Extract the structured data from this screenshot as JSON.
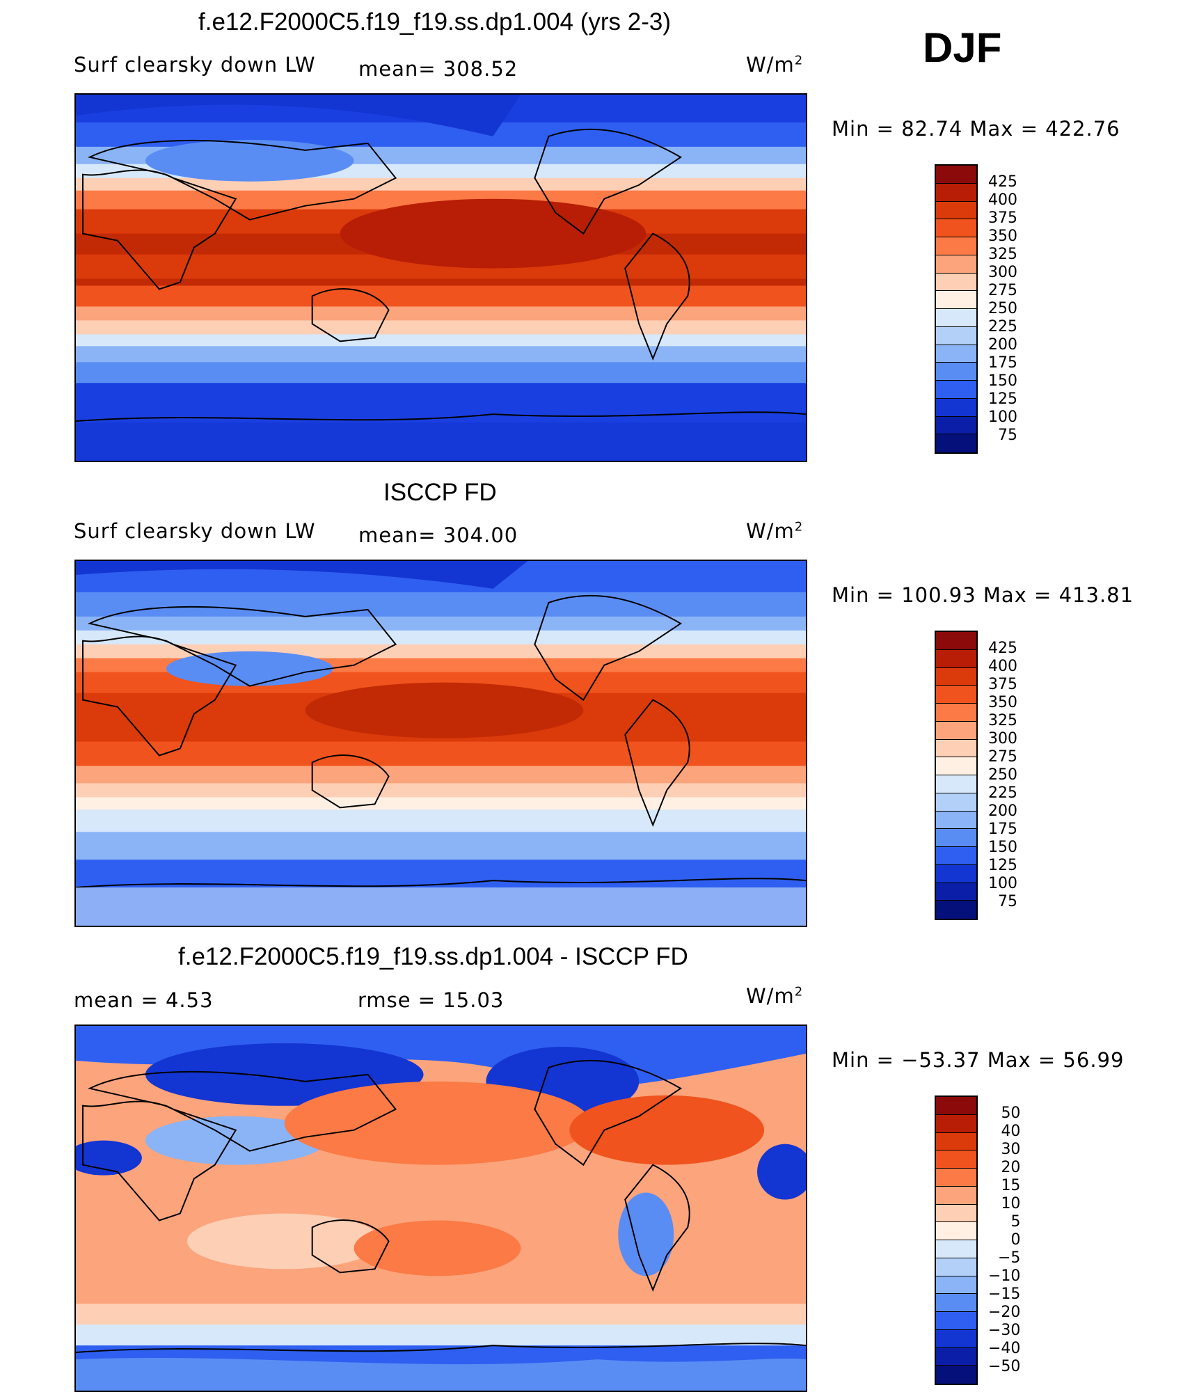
{
  "season": "DJF",
  "units_symbol": "W/m",
  "units_exp": "2",
  "panels": [
    {
      "title": "f.e12.F2000C5.f19_f19.ss.dp1.004 (yrs 2-3)",
      "left_label": "Surf clearsky down LW",
      "stat_label": "mean= 308.52",
      "minmax": "Min =   82.74 Max =  422.76"
    },
    {
      "title": "ISCCP FD",
      "left_label": "Surf clearsky down LW",
      "stat_label": "mean= 304.00",
      "minmax": "Min = 100.93 Max = 413.81"
    },
    {
      "title": "f.e12.F2000C5.f19_f19.ss.dp1.004 - ISCCP FD",
      "left_label": "mean =     4.53",
      "stat_label": "rmse =   15.03",
      "minmax": "Min = −53.37 Max =   56.99"
    }
  ],
  "colorbars": [
    {
      "labels": [
        "425",
        "400",
        "375",
        "350",
        "325",
        "300",
        "275",
        "250",
        "225",
        "200",
        "175",
        "150",
        "125",
        "100",
        "75"
      ],
      "colors": [
        "#8b0a0a",
        "#b81e05",
        "#db3a0a",
        "#f0531d",
        "#fb7a45",
        "#fca47c",
        "#fdcfb5",
        "#fff0e3",
        "#d6e8fa",
        "#b3d1f8",
        "#8ab4f6",
        "#5a8df4",
        "#2f5ff0",
        "#1335d2",
        "#0a1ea8",
        "#05107a"
      ]
    },
    {
      "labels": [
        "425",
        "400",
        "375",
        "350",
        "325",
        "300",
        "275",
        "250",
        "225",
        "200",
        "175",
        "150",
        "125",
        "100",
        "75"
      ],
      "colors": [
        "#8b0a0a",
        "#b81e05",
        "#db3a0a",
        "#f0531d",
        "#fb7a45",
        "#fca47c",
        "#fdcfb5",
        "#fff0e3",
        "#d6e8fa",
        "#b3d1f8",
        "#8ab4f6",
        "#5a8df4",
        "#2f5ff0",
        "#1335d2",
        "#0a1ea8",
        "#05107a"
      ]
    },
    {
      "labels": [
        "50",
        "40",
        "30",
        "20",
        "15",
        "10",
        "5",
        "0",
        "−5",
        "−10",
        "−15",
        "−20",
        "−30",
        "−40",
        "−50"
      ],
      "colors": [
        "#8b0a0a",
        "#b81e05",
        "#db3a0a",
        "#f0531d",
        "#fb7a45",
        "#fca47c",
        "#fdcfb5",
        "#fff0e3",
        "#d6e8fa",
        "#b3d1f8",
        "#8ab4f6",
        "#5a8df4",
        "#2f5ff0",
        "#1335d2",
        "#0a1ea8",
        "#05107a"
      ]
    }
  ]
}
